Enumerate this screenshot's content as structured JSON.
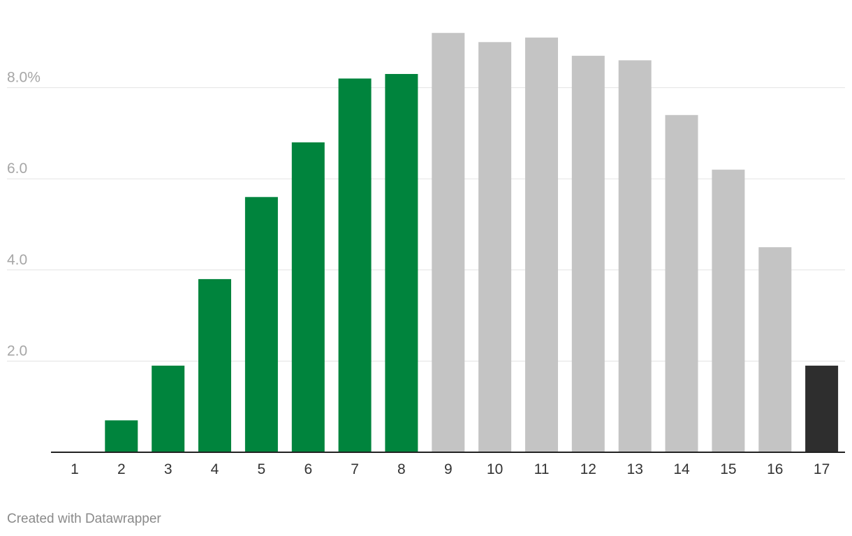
{
  "chart_data": {
    "type": "bar",
    "categories": [
      "1",
      "2",
      "3",
      "4",
      "5",
      "6",
      "7",
      "8",
      "9",
      "10",
      "11",
      "12",
      "13",
      "14",
      "15",
      "16",
      "17"
    ],
    "values": [
      0.0,
      0.7,
      1.9,
      3.8,
      5.6,
      6.8,
      8.2,
      8.3,
      9.2,
      9.0,
      9.1,
      8.7,
      8.6,
      7.4,
      6.2,
      4.5,
      1.9
    ],
    "bar_colors": [
      "#00843d",
      "#00843d",
      "#00843d",
      "#00843d",
      "#00843d",
      "#00843d",
      "#00843d",
      "#00843d",
      "#c4c4c4",
      "#c4c4c4",
      "#c4c4c4",
      "#c4c4c4",
      "#c4c4c4",
      "#c4c4c4",
      "#c4c4c4",
      "#c4c4c4",
      "#2e2e2e"
    ],
    "ylim": [
      0,
      9.2
    ],
    "yticks": [
      2,
      4,
      6,
      8
    ],
    "ytick_labels": [
      "2.0",
      "4.0",
      "6.0",
      "8.0%"
    ],
    "grid": true,
    "title": "",
    "xlabel": "",
    "ylabel": ""
  },
  "footer": {
    "credit": "Created with Datawrapper"
  },
  "colors": {
    "green": "#00843d",
    "gray": "#c4c4c4",
    "dark": "#2e2e2e",
    "gridline": "#e3e3e3",
    "axis": "#222222"
  }
}
